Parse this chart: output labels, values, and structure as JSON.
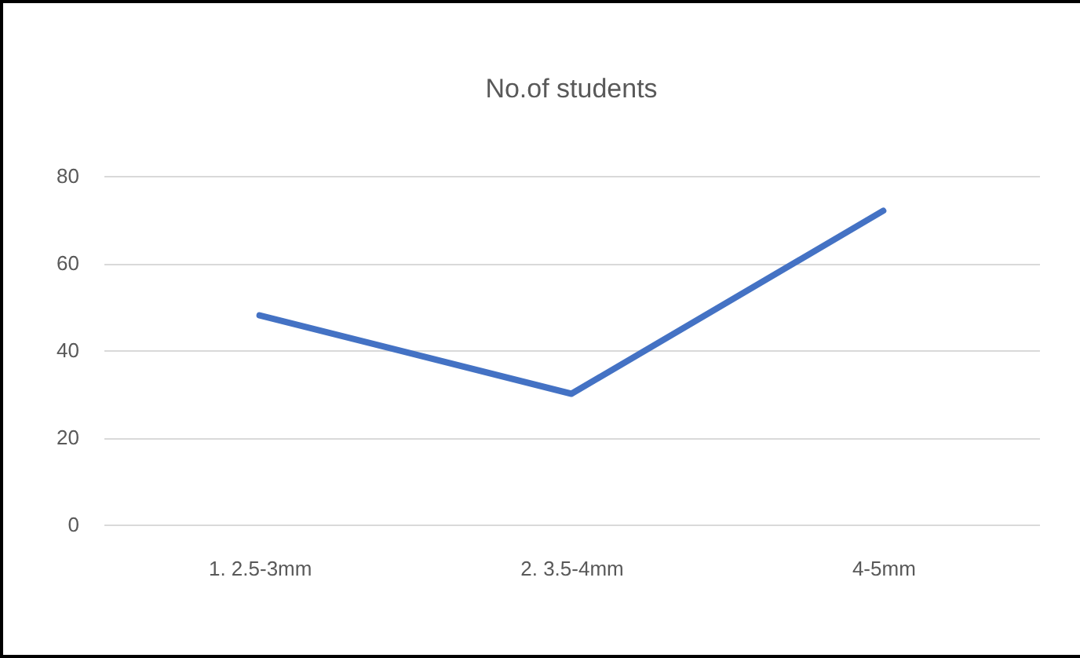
{
  "chart_data": {
    "type": "line",
    "title": "No.of students",
    "categories": [
      "1.  2.5-3mm",
      "2.  3.5-4mm",
      "4-5mm"
    ],
    "series": [
      {
        "color": "#4472c4",
        "values": [
          48,
          30,
          72
        ]
      }
    ],
    "ylim": [
      0,
      80
    ],
    "yticks": [
      0,
      20,
      40,
      60,
      80
    ],
    "grid": "y",
    "legend": false,
    "marker": "none",
    "line_style": "solid"
  }
}
